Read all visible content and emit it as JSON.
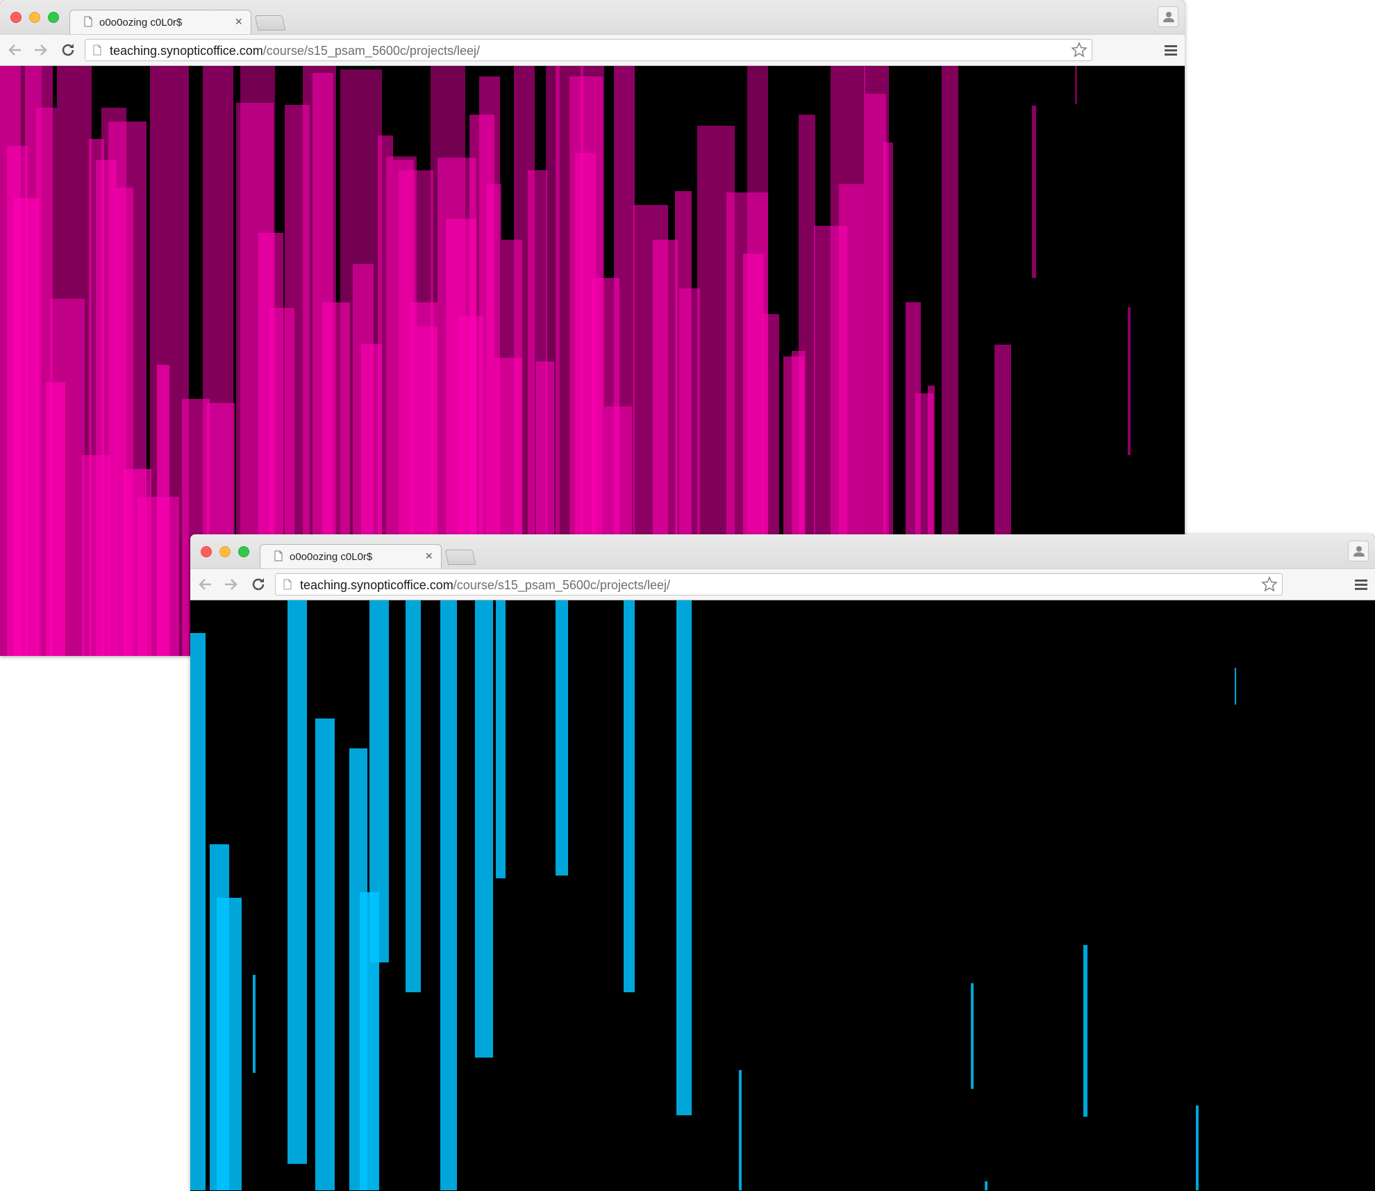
{
  "windows": [
    {
      "tab_title": "o0o0ozing c0L0r$",
      "tab_close": "×",
      "url_host": "teaching.synopticoffice.com",
      "url_path": "/course/s15_psam_5600c/projects/leej/",
      "bar_color": "#ff00b4"
    },
    {
      "tab_title": "o0o0ozing c0L0r$",
      "tab_close": "×",
      "url_host": "teaching.synopticoffice.com",
      "url_path": "/course/s15_psam_5600c/projects/leej/",
      "bar_color": "#00c3ff"
    }
  ],
  "icons": {
    "page": "page-icon",
    "back": "back-arrow-icon",
    "forward": "forward-arrow-icon",
    "reload": "reload-icon",
    "star": "star-icon",
    "menu": "hamburger-menu-icon",
    "profile": "person-icon"
  }
}
